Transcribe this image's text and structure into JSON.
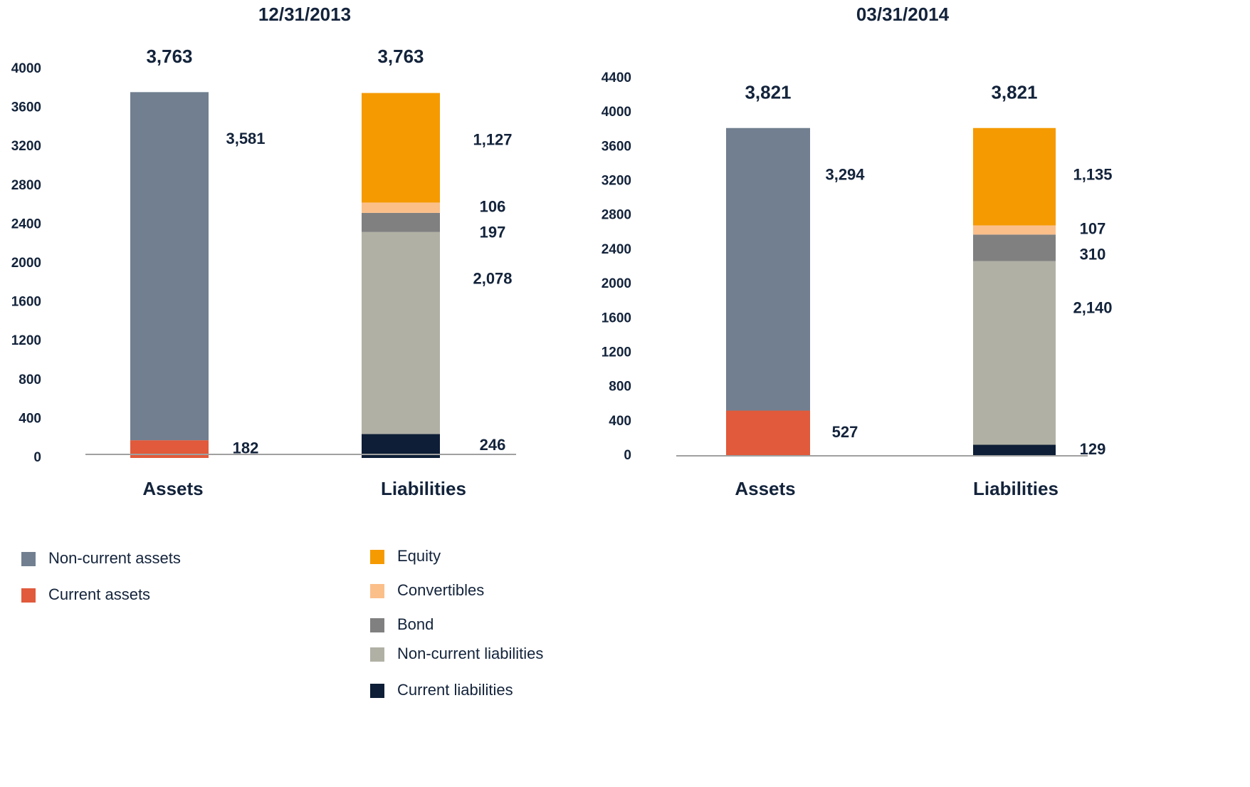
{
  "chart_data": [
    {
      "type": "stacked-bar",
      "title": "12/31/2013",
      "categories": [
        "Assets",
        "Liabilities"
      ],
      "totals": [
        3763,
        3763
      ],
      "total_labels": [
        "3,763",
        "3,763"
      ],
      "ylim": [
        0,
        4000
      ],
      "yticks": [
        0,
        400,
        800,
        1200,
        1600,
        2000,
        2400,
        2800,
        3200,
        3600,
        4000
      ],
      "series": [
        {
          "name": "Non-current assets",
          "color": "#717f90",
          "values": [
            3581,
            null
          ],
          "value_labels": [
            "3,581",
            null
          ]
        },
        {
          "name": "Current assets",
          "color": "#e05a3b",
          "values": [
            182,
            null
          ],
          "value_labels": [
            "182",
            null
          ]
        },
        {
          "name": "Equity",
          "color": "#f59a00",
          "values": [
            null,
            1127
          ],
          "value_labels": [
            null,
            "1,127"
          ]
        },
        {
          "name": "Convertibles",
          "color": "#fbbf8a",
          "values": [
            null,
            106
          ],
          "value_labels": [
            null,
            "106"
          ]
        },
        {
          "name": "Bond",
          "color": "#808080",
          "values": [
            null,
            197
          ],
          "value_labels": [
            null,
            "197"
          ]
        },
        {
          "name": "Non-current liabilities",
          "color": "#b0b0a4",
          "values": [
            null,
            2078
          ],
          "value_labels": [
            null,
            "2,078"
          ]
        },
        {
          "name": "Current liabilities",
          "color": "#0d1e36",
          "values": [
            null,
            246
          ],
          "value_labels": [
            null,
            "246"
          ]
        }
      ]
    },
    {
      "type": "stacked-bar",
      "title": "03/31/2014",
      "categories": [
        "Assets",
        "Liabilities"
      ],
      "totals": [
        3821,
        3821
      ],
      "total_labels": [
        "3,821",
        "3,821"
      ],
      "ylim": [
        0,
        4400
      ],
      "yticks": [
        0,
        400,
        800,
        1200,
        1600,
        2000,
        2400,
        2800,
        3200,
        3600,
        4000,
        4400
      ],
      "series": [
        {
          "name": "Non-current assets",
          "color": "#717f90",
          "values": [
            3294,
            null
          ],
          "value_labels": [
            "3,294",
            null
          ]
        },
        {
          "name": "Current assets",
          "color": "#e05a3b",
          "values": [
            527,
            null
          ],
          "value_labels": [
            "527",
            null
          ]
        },
        {
          "name": "Equity",
          "color": "#f59a00",
          "values": [
            null,
            1135
          ],
          "value_labels": [
            null,
            "1,135"
          ]
        },
        {
          "name": "Convertibles",
          "color": "#fbbf8a",
          "values": [
            null,
            107
          ],
          "value_labels": [
            null,
            "107"
          ]
        },
        {
          "name": "Bond",
          "color": "#808080",
          "values": [
            null,
            310
          ],
          "value_labels": [
            null,
            "310"
          ]
        },
        {
          "name": "Non-current liabilities",
          "color": "#b0b0a4",
          "values": [
            null,
            2140
          ],
          "value_labels": [
            null,
            "2,140"
          ]
        },
        {
          "name": "Current liabilities",
          "color": "#0d1e36",
          "values": [
            null,
            129
          ],
          "value_labels": [
            null,
            "129"
          ]
        }
      ]
    }
  ]
}
